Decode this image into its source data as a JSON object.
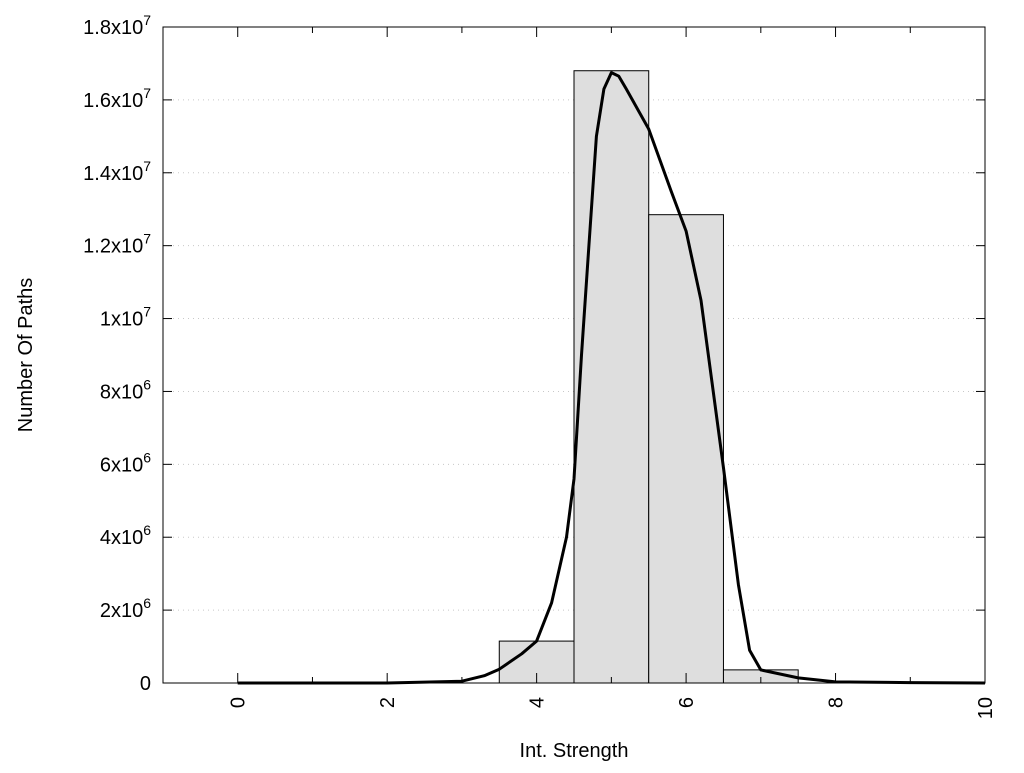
{
  "chart_data": {
    "type": "bar",
    "title": "",
    "xlabel": "Int. Strength",
    "ylabel": "Number Of Paths",
    "xlim": [
      -1,
      10
    ],
    "ylim": [
      0,
      18000000
    ],
    "grid": "horizontal dotted",
    "x_ticks": [
      0,
      2,
      4,
      6,
      8,
      10
    ],
    "x_tick_labels": [
      "0",
      "2",
      "4",
      "6",
      "8",
      "10"
    ],
    "y_ticks": [
      0,
      2000000,
      4000000,
      6000000,
      8000000,
      10000000,
      12000000,
      14000000,
      16000000,
      18000000
    ],
    "y_tick_labels": [
      {
        "base": "0",
        "exp": ""
      },
      {
        "base": "2x10",
        "exp": "6"
      },
      {
        "base": "4x10",
        "exp": "6"
      },
      {
        "base": "6x10",
        "exp": "6"
      },
      {
        "base": "8x10",
        "exp": "6"
      },
      {
        "base": "1x10",
        "exp": "7"
      },
      {
        "base": "1.2x10",
        "exp": "7"
      },
      {
        "base": "1.4x10",
        "exp": "7"
      },
      {
        "base": "1.6x10",
        "exp": "7"
      },
      {
        "base": "1.8x10",
        "exp": "7"
      }
    ],
    "bars": {
      "name": "histogram",
      "centers": [
        4,
        5,
        6,
        7
      ],
      "width": 1,
      "values": [
        1150000,
        16800000,
        12850000,
        360000
      ],
      "fill": "#dedede",
      "stroke": "#000000"
    },
    "curve": {
      "name": "fit",
      "color": "#000000",
      "x": [
        0,
        1,
        2,
        3,
        3.3,
        3.5,
        3.8,
        4,
        4.2,
        4.4,
        4.5,
        4.6,
        4.7,
        4.8,
        4.9,
        5.0,
        5.1,
        5.2,
        5.5,
        5.8,
        6,
        6.2,
        6.5,
        6.7,
        6.85,
        7,
        7.5,
        8,
        9,
        10
      ],
      "y": [
        0,
        0,
        0,
        50000,
        200000,
        380000,
        800000,
        1150000,
        2200000,
        4000000,
        5600000,
        9000000,
        12000000,
        15000000,
        16300000,
        16750000,
        16650000,
        16300000,
        15200000,
        13500000,
        12400000,
        10500000,
        5900000,
        2700000,
        900000,
        360000,
        140000,
        30000,
        10000,
        0
      ]
    }
  }
}
